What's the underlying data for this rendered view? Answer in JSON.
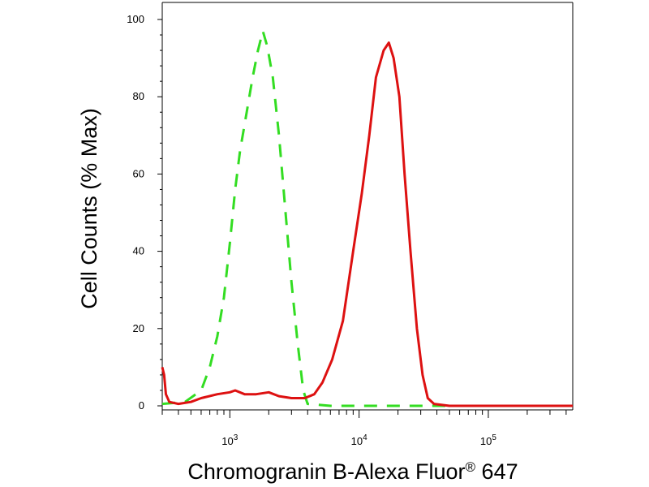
{
  "chart_data": {
    "type": "line",
    "title": "",
    "xlabel": "Chromogranin B-Alexa Fluor® 647",
    "ylabel": "Cell Counts (% Max)",
    "xscale": "log",
    "xlim": [
      300,
      450000
    ],
    "ylim": [
      0,
      100
    ],
    "x_ticks": [
      {
        "value": 1000,
        "base": "10",
        "exp": "3"
      },
      {
        "value": 10000,
        "base": "10",
        "exp": "4"
      },
      {
        "value": 100000,
        "base": "10",
        "exp": "5"
      }
    ],
    "y_ticks": [
      {
        "value": 0,
        "label": "0"
      },
      {
        "value": 20,
        "label": "20"
      },
      {
        "value": 40,
        "label": "40"
      },
      {
        "value": 60,
        "label": "60"
      },
      {
        "value": 80,
        "label": "80"
      },
      {
        "value": 100,
        "label": "100"
      }
    ],
    "grid": false,
    "legend": "none",
    "series": [
      {
        "style": "dashed",
        "color": "#33dd22",
        "points": [
          [
            300,
            0.5
          ],
          [
            450,
            1
          ],
          [
            600,
            4
          ],
          [
            700,
            10
          ],
          [
            800,
            18
          ],
          [
            900,
            28
          ],
          [
            1000,
            42
          ],
          [
            1100,
            56
          ],
          [
            1200,
            66
          ],
          [
            1350,
            76
          ],
          [
            1500,
            85
          ],
          [
            1650,
            92
          ],
          [
            1800,
            97
          ],
          [
            1950,
            93
          ],
          [
            2150,
            85
          ],
          [
            2400,
            70
          ],
          [
            2700,
            50
          ],
          [
            3000,
            32
          ],
          [
            3350,
            16
          ],
          [
            3700,
            4
          ],
          [
            4000,
            0.5
          ],
          [
            6000,
            0
          ],
          [
            450000,
            0
          ]
        ]
      },
      {
        "style": "solid",
        "color": "#dd1111",
        "points": [
          [
            300,
            10
          ],
          [
            310,
            8
          ],
          [
            320,
            3
          ],
          [
            340,
            1
          ],
          [
            400,
            0.5
          ],
          [
            500,
            1
          ],
          [
            600,
            2
          ],
          [
            800,
            3
          ],
          [
            1000,
            3.5
          ],
          [
            1100,
            4
          ],
          [
            1300,
            3
          ],
          [
            1600,
            3
          ],
          [
            2000,
            3.5
          ],
          [
            2400,
            2.5
          ],
          [
            3000,
            2
          ],
          [
            3800,
            2
          ],
          [
            4500,
            3
          ],
          [
            5200,
            6
          ],
          [
            6200,
            12
          ],
          [
            7500,
            22
          ],
          [
            9000,
            40
          ],
          [
            10500,
            55
          ],
          [
            12000,
            70
          ],
          [
            13500,
            85
          ],
          [
            15500,
            92
          ],
          [
            17000,
            94
          ],
          [
            18500,
            90
          ],
          [
            20500,
            80
          ],
          [
            22500,
            60
          ],
          [
            25000,
            40
          ],
          [
            28000,
            20
          ],
          [
            31000,
            8
          ],
          [
            34000,
            2
          ],
          [
            38000,
            0.5
          ],
          [
            50000,
            0
          ],
          [
            450000,
            0
          ]
        ]
      }
    ]
  }
}
